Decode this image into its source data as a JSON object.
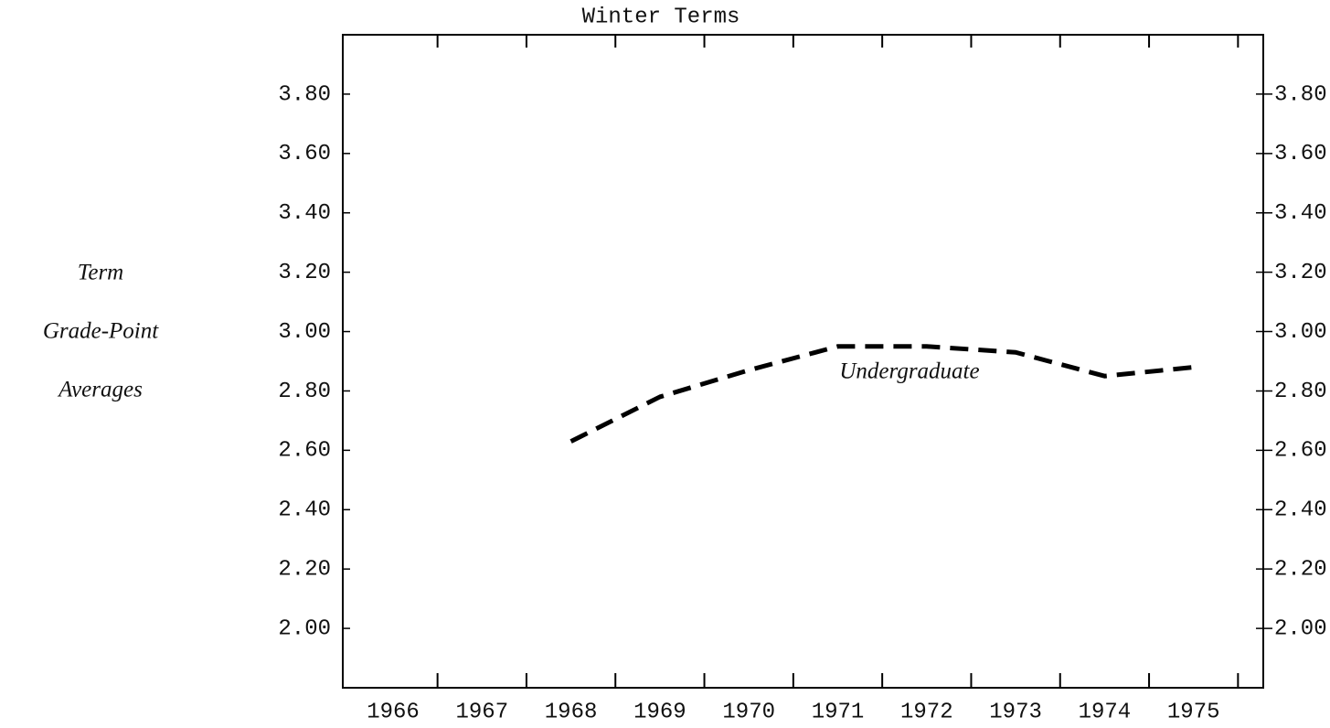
{
  "chart_data": {
    "type": "line",
    "title": "Winter Terms",
    "ylabel": [
      "Term",
      "Grade-Point",
      "Averages"
    ],
    "categories": [
      "1966",
      "1967",
      "1968",
      "1969",
      "1970",
      "1971",
      "1972",
      "1973",
      "1974",
      "1975"
    ],
    "series": [
      {
        "name": "Undergraduate",
        "color": "#000000",
        "values": [
          null,
          null,
          2.63,
          2.78,
          2.87,
          2.95,
          2.95,
          2.93,
          2.85,
          2.88
        ]
      }
    ],
    "ylim": [
      1.8,
      4.0
    ],
    "yticks": [
      {
        "value": 2.0,
        "label": "2.00"
      },
      {
        "value": 2.2,
        "label": "2.20"
      },
      {
        "value": 2.4,
        "label": "2.40"
      },
      {
        "value": 2.6,
        "label": "2.60"
      },
      {
        "value": 2.8,
        "label": "2.80"
      },
      {
        "value": 3.0,
        "label": "3.00"
      },
      {
        "value": 3.2,
        "label": "3.20"
      },
      {
        "value": 3.4,
        "label": "3.40"
      },
      {
        "value": 3.6,
        "label": "3.60"
      },
      {
        "value": 3.8,
        "label": "3.80"
      }
    ],
    "y2lim": [
      1.8,
      4.0
    ],
    "y2ticks": [
      {
        "value": 2.0,
        "label": "2.00"
      },
      {
        "value": 2.2,
        "label": "2.20"
      },
      {
        "value": 2.4,
        "label": "2.40"
      },
      {
        "value": 2.6,
        "label": "2.60"
      },
      {
        "value": 2.8,
        "label": "2.80"
      },
      {
        "value": 3.0,
        "label": "3.00"
      },
      {
        "value": 3.2,
        "label": "3.20"
      },
      {
        "value": 3.4,
        "label": "3.40"
      },
      {
        "value": 3.6,
        "label": "3.60"
      },
      {
        "value": 3.8,
        "label": "3.80"
      }
    ],
    "grid": false,
    "dashed": true
  }
}
